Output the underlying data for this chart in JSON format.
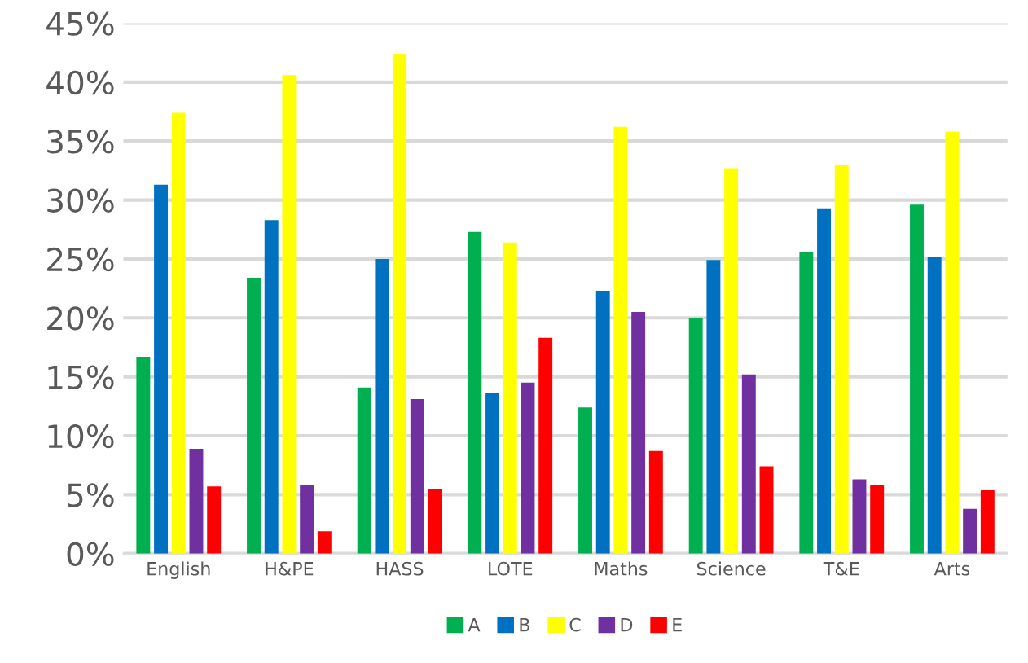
{
  "chart_data": {
    "type": "bar",
    "categories": [
      "English",
      "H&PE",
      "HASS",
      "LOTE",
      "Maths",
      "Science",
      "T&E",
      "Arts"
    ],
    "series": [
      {
        "name": "A",
        "color": "#00b050",
        "values": [
          16.7,
          23.4,
          14.1,
          27.3,
          12.4,
          20.0,
          25.6,
          29.6
        ]
      },
      {
        "name": "B",
        "color": "#0070c0",
        "values": [
          31.3,
          28.3,
          25.0,
          13.6,
          22.3,
          24.9,
          29.3,
          25.2
        ]
      },
      {
        "name": "C",
        "color": "#ffff00",
        "values": [
          37.4,
          40.6,
          42.4,
          26.4,
          36.2,
          32.7,
          33.0,
          35.8
        ]
      },
      {
        "name": "D",
        "color": "#7030a0",
        "values": [
          8.9,
          5.8,
          13.1,
          14.5,
          20.5,
          15.2,
          6.3,
          3.8
        ]
      },
      {
        "name": "E",
        "color": "#ff0000",
        "values": [
          5.7,
          1.9,
          5.5,
          18.3,
          8.7,
          7.4,
          5.8,
          5.4
        ]
      }
    ],
    "ylim": [
      0,
      45
    ],
    "yticks": [
      {
        "value": 0,
        "label": "0%"
      },
      {
        "value": 5,
        "label": "5%"
      },
      {
        "value": 10,
        "label": "10%"
      },
      {
        "value": 15,
        "label": "15%"
      },
      {
        "value": 20,
        "label": "20%"
      },
      {
        "value": 25,
        "label": "25%"
      },
      {
        "value": 30,
        "label": "30%"
      },
      {
        "value": 35,
        "label": "35%"
      },
      {
        "value": 40,
        "label": "40%"
      },
      {
        "value": 45,
        "label": "45%"
      }
    ],
    "grid": "y",
    "legend": "bottom"
  }
}
